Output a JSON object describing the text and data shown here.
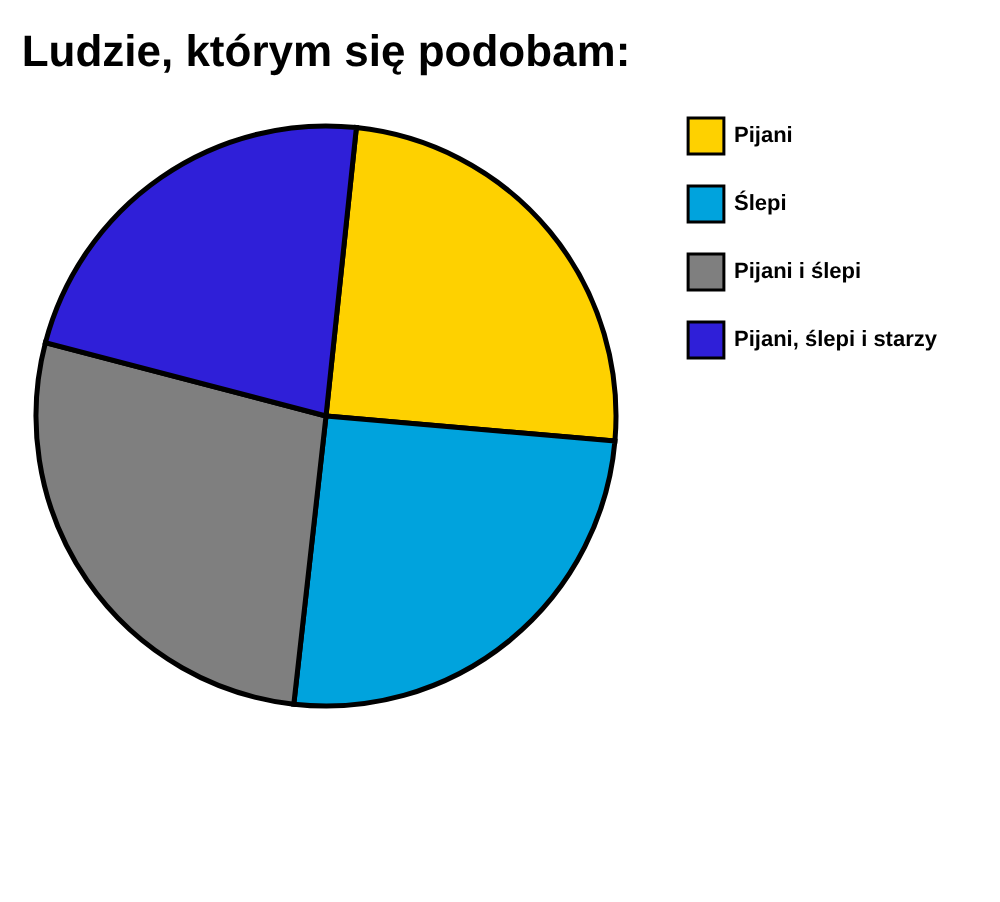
{
  "chart_data": {
    "type": "pie",
    "title": "Ludzie, którym się podobam:",
    "categories": [
      "Pijani",
      "Ślepi",
      "Pijani i ślepi",
      "Pijani, ślepi i starzy"
    ],
    "values": [
      24.7,
      25.4,
      27.3,
      22.6
    ],
    "colors": [
      "#fed100",
      "#00a3dd",
      "#7f7f7f",
      "#2f1fd8"
    ],
    "legend": "right"
  }
}
